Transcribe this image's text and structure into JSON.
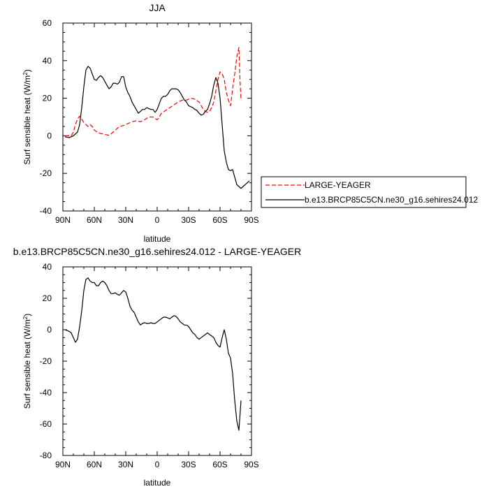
{
  "chart_data": [
    {
      "type": "line",
      "title": "JJA",
      "xlabel": "latitude",
      "ylabel": "Surf sensible heat (W/m",
      "ylabel_sup": "2",
      "ylabel_close": ")",
      "xlim": [
        90,
        -90
      ],
      "ylim": [
        -40,
        60
      ],
      "x_ticks": [
        90,
        60,
        30,
        0,
        -30,
        -60,
        -90
      ],
      "x_tick_labels": [
        "90N",
        "60N",
        "30N",
        "0",
        "30S",
        "60S",
        "90S"
      ],
      "y_ticks": [
        -40,
        -20,
        0,
        20,
        40,
        60
      ],
      "y_tick_labels": [
        "-40",
        "-20",
        "0",
        "20",
        "40",
        "60"
      ],
      "legend_position": "right",
      "series": [
        {
          "name": "LARGE-YEAGER",
          "color": "#ff0000",
          "dash": "dashed",
          "x": [
            88,
            85,
            82,
            80,
            78,
            76,
            74,
            72,
            70,
            68,
            66,
            64,
            62,
            60,
            56,
            52,
            48,
            46,
            44,
            42,
            40,
            36,
            32,
            28,
            24,
            20,
            16,
            12,
            8,
            4,
            0,
            -2,
            -4,
            -8,
            -12,
            -16,
            -20,
            -24,
            -28,
            -32,
            -36,
            -40,
            -44,
            -46,
            -48,
            -50,
            -52,
            -54,
            -56,
            -58,
            -60,
            -62,
            -64,
            -66,
            -68,
            -70,
            -72,
            -74,
            -76,
            -78,
            -79,
            -80
          ],
          "y": [
            0,
            0,
            0,
            2,
            6,
            9,
            10.5,
            9,
            7,
            6,
            5,
            6,
            5,
            3,
            1.5,
            1,
            0.5,
            0.3,
            1,
            2,
            3,
            5,
            5.5,
            6.5,
            7.5,
            8,
            7.5,
            8.5,
            10,
            10,
            8.5,
            10,
            12,
            13.5,
            15,
            16.5,
            18,
            19,
            19,
            20,
            19.5,
            18,
            14,
            13,
            12.5,
            13,
            15,
            18,
            24,
            30,
            34,
            33,
            30,
            23,
            19,
            16,
            25,
            33,
            42,
            47,
            30,
            19
          ]
        },
        {
          "name": "b.e13.BRCP85C5CN.ne30_g16.sehires24.012",
          "color": "#000000",
          "dash": "solid",
          "x": [
            88,
            84,
            80,
            76,
            74,
            72,
            70,
            68,
            66,
            64,
            62,
            60,
            58,
            56,
            54,
            52,
            50,
            48,
            46,
            44,
            42,
            40,
            38,
            36,
            34,
            32,
            30,
            28,
            26,
            24,
            22,
            20,
            18,
            16,
            14,
            12,
            10,
            8,
            6,
            4,
            2,
            0,
            -2,
            -4,
            -6,
            -8,
            -10,
            -12,
            -14,
            -16,
            -18,
            -20,
            -22,
            -24,
            -26,
            -28,
            -30,
            -32,
            -34,
            -36,
            -38,
            -40,
            -42,
            -44,
            -46,
            -48,
            -50,
            -52,
            -54,
            -56,
            -58,
            -60,
            -62,
            -64,
            -66,
            -68,
            -70,
            -72,
            -74,
            -76,
            -78,
            -80,
            -82,
            -84,
            -86,
            -88
          ],
          "y": [
            -0.5,
            -1,
            0,
            2,
            6,
            15,
            26,
            35,
            37,
            36,
            33,
            30,
            29.5,
            31,
            32,
            31,
            29,
            27,
            25,
            26,
            28,
            28,
            27.5,
            28.5,
            31.5,
            31.5,
            26,
            23,
            21,
            18,
            16,
            14,
            12,
            13,
            14,
            14,
            15,
            14.5,
            14,
            14,
            12.5,
            14,
            17,
            20,
            21,
            21,
            22,
            24,
            25,
            25,
            25,
            24.5,
            23,
            21,
            19,
            18,
            16,
            15.5,
            15,
            14,
            13.5,
            12,
            11,
            11.5,
            13,
            14,
            17,
            21,
            27,
            31,
            28,
            20,
            6,
            -8,
            -14,
            -18,
            -18.5,
            -18,
            -22,
            -26,
            -27,
            -28,
            -27,
            -26,
            -25,
            -24
          ]
        }
      ]
    },
    {
      "type": "line",
      "title": "b.e13.BRCP85C5CN.ne30_g16.sehires24.012 - LARGE-YEAGER",
      "xlabel": "latitude",
      "ylabel": "Surf sensible heat (W/m",
      "ylabel_sup": "2",
      "ylabel_close": ")",
      "xlim": [
        90,
        -90
      ],
      "ylim": [
        -80,
        40
      ],
      "x_ticks": [
        90,
        60,
        30,
        0,
        -30,
        -60,
        -90
      ],
      "x_tick_labels": [
        "90N",
        "60N",
        "30N",
        "0",
        "30S",
        "60S",
        "90S"
      ],
      "y_ticks": [
        -80,
        -60,
        -40,
        -20,
        0,
        20,
        40
      ],
      "y_tick_labels": [
        "-80",
        "-60",
        "-40",
        "-20",
        "0",
        "20",
        "40"
      ],
      "series": [
        {
          "color": "#000000",
          "dash": "solid",
          "x": [
            88,
            84,
            82,
            80,
            78,
            76,
            74,
            72,
            70,
            68,
            66,
            64,
            62,
            60,
            58,
            56,
            54,
            52,
            50,
            48,
            46,
            44,
            42,
            40,
            38,
            36,
            34,
            32,
            30,
            28,
            26,
            24,
            22,
            20,
            18,
            16,
            14,
            12,
            10,
            8,
            6,
            4,
            2,
            0,
            -2,
            -4,
            -6,
            -8,
            -10,
            -12,
            -14,
            -16,
            -18,
            -20,
            -22,
            -24,
            -26,
            -28,
            -30,
            -32,
            -34,
            -36,
            -38,
            -40,
            -42,
            -44,
            -46,
            -48,
            -50,
            -52,
            -54,
            -56,
            -58,
            -60,
            -62,
            -64,
            -66,
            -68,
            -70,
            -72,
            -74,
            -76,
            -78,
            -80
          ],
          "y": [
            0,
            -1,
            -2,
            -5,
            -8,
            -6,
            2,
            12,
            25,
            32,
            33,
            31,
            30,
            30,
            28,
            28,
            30,
            31,
            30,
            28,
            25,
            23,
            23,
            23.5,
            22.5,
            22,
            23.5,
            25,
            24,
            20,
            15,
            12.5,
            11,
            8,
            5,
            3,
            4,
            4.5,
            4,
            4,
            4.5,
            4,
            4,
            5,
            6,
            7,
            8,
            8,
            7.5,
            7,
            8,
            9,
            8.5,
            7,
            5,
            4,
            3,
            3,
            2,
            0,
            -2,
            -3,
            -5,
            -6,
            -5,
            -4,
            -3,
            -2,
            -3,
            -4,
            -5,
            -8,
            -10,
            -11,
            -5,
            0,
            -6,
            -15,
            -18,
            -28,
            -45,
            -58,
            -64,
            -45
          ]
        }
      ]
    }
  ]
}
